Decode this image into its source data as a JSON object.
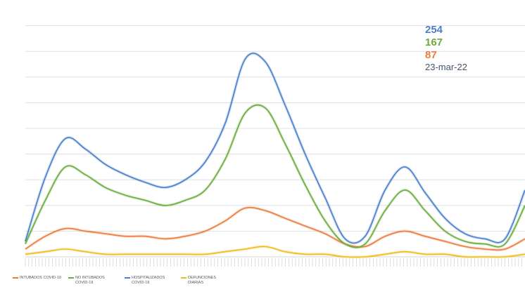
{
  "callouts": {
    "hospitalizados": "254",
    "no_intubados": "167",
    "intubados": "87",
    "date": "23-mar-22"
  },
  "colors": {
    "hospitalizados": "#4a7fcb",
    "no_intubados": "#6aac3c",
    "intubados": "#ec7b3c",
    "defunciones": "#f2bb16",
    "date": "#44546a",
    "grid": "#d9d9d9"
  },
  "chart_data": {
    "type": "line",
    "title": "",
    "xlabel": "",
    "ylabel": "",
    "grid": true,
    "legend_position": "bottom-left",
    "x": [
      0,
      4,
      8,
      12,
      16,
      20,
      24,
      28,
      32,
      36,
      40,
      44,
      48,
      52,
      56,
      60,
      64,
      68,
      72,
      76,
      80,
      84,
      88,
      92,
      96,
      100
    ],
    "ylim": [
      0,
      100
    ],
    "series": [
      {
        "name": "INTUBADOS COVID-19",
        "color": "#ec7b3c",
        "values": [
          3,
          8,
          11,
          10,
          9,
          8,
          8,
          7,
          8,
          10,
          14,
          19,
          18,
          15,
          12,
          9,
          5,
          4,
          8,
          10,
          8,
          6,
          4,
          3,
          3,
          7
        ]
      },
      {
        "name": "NO INTUBADOS COVID-19",
        "color": "#6aac3c",
        "values": [
          5,
          22,
          35,
          32,
          27,
          24,
          22,
          20,
          22,
          26,
          38,
          56,
          58,
          44,
          28,
          14,
          5,
          5,
          18,
          26,
          18,
          10,
          6,
          5,
          5,
          20
        ]
      },
      {
        "name": "HOSPITALIZADOS COVID-19",
        "color": "#4a7fcb",
        "values": [
          6,
          31,
          46,
          42,
          36,
          32,
          29,
          27,
          30,
          37,
          52,
          77,
          76,
          59,
          40,
          23,
          7,
          8,
          26,
          35,
          25,
          15,
          9,
          7,
          7,
          26
        ]
      },
      {
        "name": "DEFUNCIONES DIARIAS",
        "color": "#f2bb16",
        "values": [
          1,
          2,
          3,
          2,
          1,
          1,
          1,
          1,
          1,
          1,
          2,
          3,
          4,
          2,
          1,
          1,
          0,
          0,
          1,
          2,
          1,
          1,
          0,
          0,
          0,
          1
        ]
      }
    ]
  },
  "legend": [
    {
      "label": "INTUBADOS COVID-19",
      "color": "#ec7b3c"
    },
    {
      "label": "NO INTUBADOS COVID-19",
      "color": "#6aac3c"
    },
    {
      "label": "HOSPITALIZADOS COVID-19",
      "color": "#4a7fcb"
    },
    {
      "label": "DEFUNCIONES DIARIAS",
      "color": "#f2bb16"
    }
  ]
}
